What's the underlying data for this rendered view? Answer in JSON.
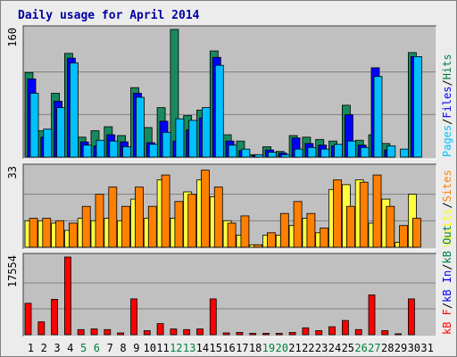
{
  "chart_data": {
    "type": "bar",
    "title": "Daily usage for April 2014",
    "weekend_days": [
      5,
      6,
      12,
      13,
      19,
      20,
      26,
      27
    ],
    "categories": [
      "1",
      "2",
      "3",
      "4",
      "5",
      "6",
      "7",
      "8",
      "9",
      "10",
      "11",
      "12",
      "13",
      "14",
      "15",
      "16",
      "17",
      "18",
      "19",
      "20",
      "21",
      "22",
      "23",
      "24",
      "25",
      "26",
      "27",
      "28",
      "29",
      "30",
      "31"
    ],
    "panels": [
      {
        "id": "hits-files-pages",
        "ymax_label": "160",
        "ymax": 160,
        "legend": [
          {
            "text": "Pages",
            "color": "#00c0ff"
          },
          {
            "text": "/",
            "color": "#000000"
          },
          {
            "text": "Files",
            "color": "#0000ff"
          },
          {
            "text": "/",
            "color": "#000000"
          },
          {
            "text": "Hits",
            "color": "#008040"
          }
        ],
        "series": [
          {
            "name": "Hits",
            "color": "#188a5e",
            "values": [
              106,
              33,
              80,
              130,
              25,
              33,
              38,
              27,
              87,
              37,
              62,
              160,
              52,
              59,
              133,
              28,
              20,
              3,
              13,
              7,
              27,
              25,
              22,
              20,
              65,
              21,
              28,
              17,
              0,
              131,
              0
            ]
          },
          {
            "name": "Files",
            "color": "#0000ff",
            "values": [
              98,
              25,
              70,
              124,
              19,
              14,
              28,
              19,
              80,
              18,
              45,
              20,
              34,
              49,
              125,
              20,
              8,
              2,
              9,
              5,
              24,
              17,
              15,
              14,
              53,
              15,
              112,
              9,
              0,
              126,
              0
            ]
          },
          {
            "name": "Pages",
            "color": "#00c0ff",
            "values": [
              80,
              35,
              62,
              118,
              15,
              21,
              20,
              13,
              75,
              16,
              31,
              48,
              46,
              62,
              115,
              15,
              10,
              3,
              6,
              3,
              10,
              12,
              10,
              16,
              20,
              12,
              101,
              14,
              10,
              126,
              0
            ]
          }
        ]
      },
      {
        "id": "visits-sites",
        "ymax_label": "33",
        "ymax": 33,
        "legend": [
          {
            "text": "Visits",
            "color": "#ffff00"
          },
          {
            "text": "/",
            "color": "#000000"
          },
          {
            "text": "Sites",
            "color": "#ff8000"
          }
        ],
        "series": [
          {
            "name": "Visits",
            "color": "#ffff40",
            "values": [
              11,
              11,
              10,
              7,
              12,
              11,
              12,
              11,
              20,
              12,
              28,
              12,
              23,
              28,
              21,
              11,
              5,
              1,
              5,
              5,
              9,
              12,
              6,
              24,
              26,
              28,
              10,
              20,
              2,
              22,
              0
            ]
          },
          {
            "name": "Sites",
            "color": "#ff8000",
            "values": [
              12,
              12,
              11,
              10,
              17,
              22,
              25,
              17,
              25,
              17,
              30,
              19,
              22,
              32,
              25,
              10,
              13,
              1,
              6,
              14,
              19,
              14,
              8,
              28,
              17,
              27,
              30,
              17,
              9,
              12,
              0
            ]
          }
        ]
      },
      {
        "id": "kbytes",
        "ymax_label": "17554",
        "ymax": 17554,
        "legend": [
          {
            "text": "kB F",
            "color": "#ff0000"
          },
          {
            "text": "/",
            "color": "#000000"
          },
          {
            "text": "kB In",
            "color": "#0000ff"
          },
          {
            "text": "/",
            "color": "#000000"
          },
          {
            "text": "kB Out",
            "color": "#008040"
          }
        ],
        "series": [
          {
            "name": "kB F",
            "color": "#ff0000",
            "values": [
              7100,
              2900,
              8000,
              17554,
              1150,
              1300,
              1150,
              400,
              8100,
              900,
              2500,
              1300,
              1150,
              1300,
              8100,
              400,
              500,
              300,
              300,
              300,
              500,
              1550,
              900,
              1800,
              3200,
              1150,
              9000,
              900,
              200,
              8100,
              0
            ]
          }
        ]
      }
    ]
  }
}
